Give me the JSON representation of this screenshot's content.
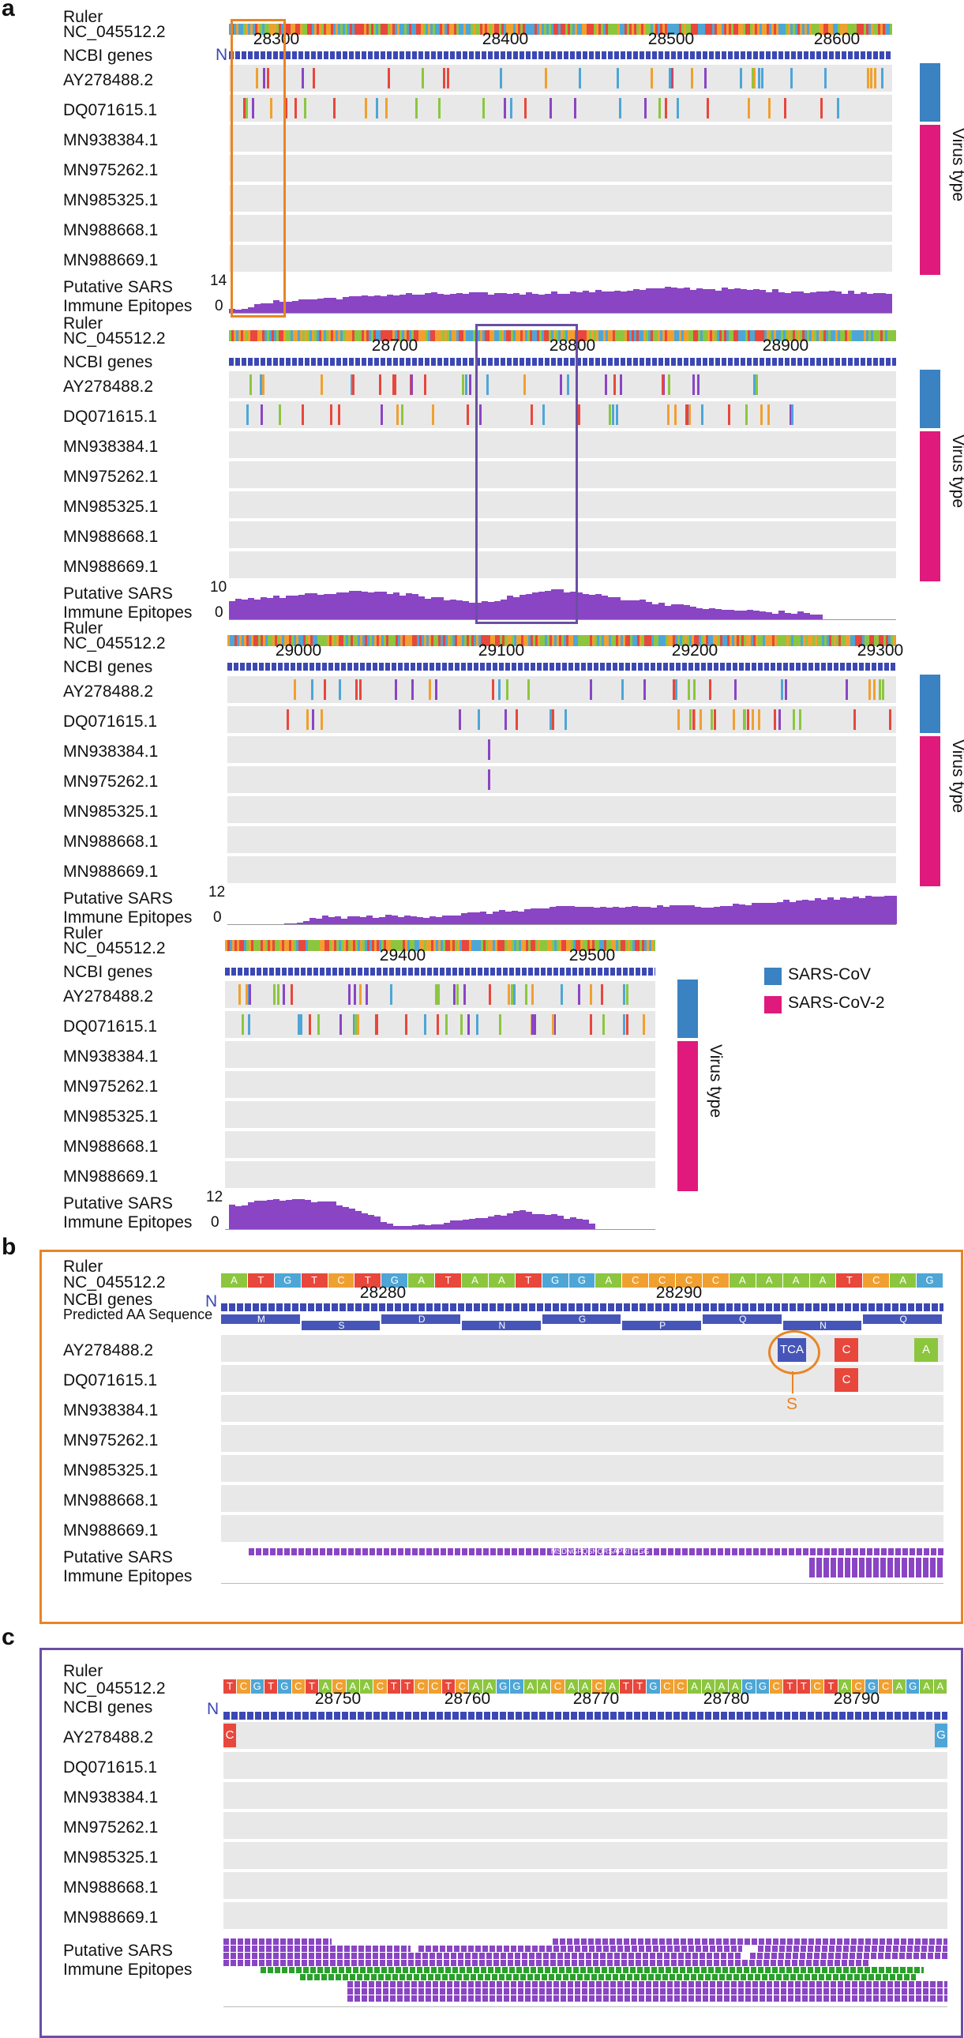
{
  "panel_labels": {
    "a": "a",
    "b": "b",
    "c": "c"
  },
  "common": {
    "ruler": "Ruler",
    "ref": "NC_045512.2",
    "genes": "NCBI genes",
    "epi1": "Putative SARS",
    "epi2": "Immune Epitopes",
    "gene_n": "N",
    "virus_type": "Virus type",
    "aa_seq": "Predicted AA Sequence"
  },
  "samples": [
    "AY278488.2",
    "DQ071615.1",
    "MN938384.1",
    "MN975262.1",
    "MN985325.1",
    "MN988668.1",
    "MN988669.1"
  ],
  "legend": [
    {
      "label": "SARS-CoV",
      "color": "#3a82c2"
    },
    {
      "label": "SARS-CoV-2",
      "color": "#e0197d"
    }
  ],
  "colors": {
    "sarscov": "#3a82c2",
    "sarscov2": "#e0197d",
    "epitope": "#8a45c4",
    "orange": "#e98524",
    "purple": "#6a4fa3",
    "gene": "#3c48b3"
  },
  "rows_a": [
    {
      "ticks": [
        "28300",
        "28400",
        "28500",
        "28600"
      ],
      "ymax": "14",
      "ymin": "0"
    },
    {
      "ticks": [
        "28700",
        "28800",
        "28900"
      ],
      "ymax": "10",
      "ymin": "0"
    },
    {
      "ticks": [
        "29000",
        "29100",
        "29200",
        "29300"
      ],
      "ymax": "12",
      "ymin": "0"
    },
    {
      "ticks": [
        "29400",
        "29500"
      ],
      "ymax": "12",
      "ymin": "0"
    }
  ],
  "panel_b": {
    "seq": [
      "A",
      "T",
      "G",
      "T",
      "C",
      "T",
      "G",
      "A",
      "T",
      "A",
      "A",
      "T",
      "G",
      "G",
      "A",
      "C",
      "C",
      "C",
      "C",
      "A",
      "A",
      "A",
      "A",
      "T",
      "C",
      "A",
      "G"
    ],
    "ticks": [
      "28280",
      "28290"
    ],
    "aa": [
      "M",
      "S",
      "D",
      "N",
      "G",
      "P",
      "Q",
      "N",
      "Q"
    ],
    "variant_tca": "TCA",
    "variant_c1": "C",
    "variant_a": "A",
    "variant_c2": "C",
    "variant_s": "S",
    "epitope_label": "MSDNGPQSNQRSAPRITFGG"
  },
  "panel_c": {
    "seq": [
      "T",
      "C",
      "G",
      "T",
      "G",
      "C",
      "T",
      "A",
      "C",
      "A",
      "A",
      "C",
      "T",
      "T",
      "C",
      "C",
      "T",
      "C",
      "A",
      "A",
      "G",
      "G",
      "A",
      "A",
      "C",
      "A",
      "A",
      "C",
      "A",
      "T",
      "T",
      "G",
      "C",
      "C",
      "A",
      "A",
      "A",
      "A",
      "G",
      "G",
      "C",
      "T",
      "T",
      "C",
      "T",
      "A",
      "C",
      "G",
      "C",
      "A",
      "G",
      "A",
      "A"
    ],
    "ticks": [
      "28750",
      "28760",
      "28770",
      "28780",
      "28790"
    ],
    "variant_left": "C",
    "variant_right": "G"
  }
}
